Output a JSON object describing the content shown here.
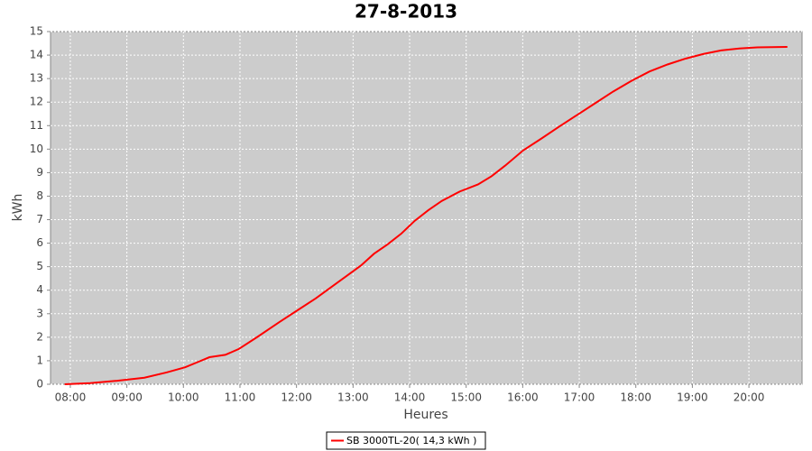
{
  "chart_data": {
    "type": "line",
    "title": "27-8-2013",
    "x_label": "Heures",
    "y_label": "kWh",
    "x": [
      7.9,
      8.35,
      8.83,
      9.31,
      9.7,
      10.03,
      10.26,
      10.46,
      10.74,
      10.98,
      11.3,
      11.7,
      12.02,
      12.34,
      12.74,
      13.14,
      13.37,
      13.61,
      13.85,
      14.09,
      14.33,
      14.57,
      14.89,
      15.21,
      15.45,
      15.69,
      16.01,
      16.33,
      16.64,
      16.96,
      17.28,
      17.6,
      17.92,
      18.24,
      18.56,
      18.88,
      19.2,
      19.51,
      19.83,
      20.15,
      20.68
    ],
    "series": [
      {
        "name": "SB 3000TL-20( 14,3 kWh )",
        "color": "#ff0000",
        "values": [
          0,
          0.05,
          0.15,
          0.28,
          0.5,
          0.72,
          0.95,
          1.15,
          1.25,
          1.5,
          2.0,
          2.65,
          3.15,
          3.65,
          4.35,
          5.05,
          5.55,
          5.95,
          6.4,
          6.95,
          7.4,
          7.8,
          8.2,
          8.5,
          8.85,
          9.3,
          9.95,
          10.45,
          10.95,
          11.45,
          11.95,
          12.45,
          12.9,
          13.3,
          13.6,
          13.85,
          14.05,
          14.2,
          14.28,
          14.33,
          14.35
        ]
      }
    ],
    "xlim": [
      7.65,
      20.94
    ],
    "xticks": [
      {
        "value": 8,
        "label": "08:00"
      },
      {
        "value": 9,
        "label": "09:00"
      },
      {
        "value": 10,
        "label": "10:00"
      },
      {
        "value": 11,
        "label": "11:00"
      },
      {
        "value": 12,
        "label": "12:00"
      },
      {
        "value": 13,
        "label": "13:00"
      },
      {
        "value": 14,
        "label": "14:00"
      },
      {
        "value": 15,
        "label": "15:00"
      },
      {
        "value": 16,
        "label": "16:00"
      },
      {
        "value": 17,
        "label": "17:00"
      },
      {
        "value": 18,
        "label": "18:00"
      },
      {
        "value": 19,
        "label": "19:00"
      },
      {
        "value": 20,
        "label": "20:00"
      }
    ],
    "ylim": [
      0,
      15
    ],
    "yticks": [
      0,
      1,
      2,
      3,
      4,
      5,
      6,
      7,
      8,
      9,
      10,
      11,
      12,
      13,
      14,
      15
    ],
    "grid": true,
    "legend": "bottom"
  }
}
